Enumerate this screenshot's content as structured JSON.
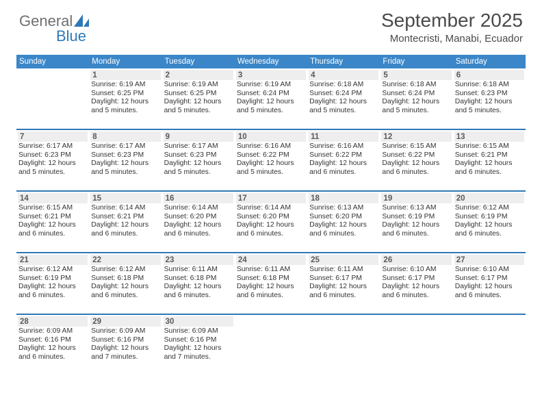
{
  "brand": {
    "part1": "General",
    "part2": "Blue"
  },
  "title": "September 2025",
  "location": "Montecristi, Manabi, Ecuador",
  "colors": {
    "header_bg": "#3a86c8",
    "week_border": "#2f78b7",
    "daynum_bg": "#eeeeee",
    "text": "#333333",
    "title_color": "#4a4a4a",
    "logo_gray": "#6f6f6f"
  },
  "weekdays": [
    "Sunday",
    "Monday",
    "Tuesday",
    "Wednesday",
    "Thursday",
    "Friday",
    "Saturday"
  ],
  "weeks": [
    [
      {
        "num": "",
        "sunrise": "",
        "sunset": "",
        "daylight": ""
      },
      {
        "num": "1",
        "sunrise": "6:19 AM",
        "sunset": "6:25 PM",
        "daylight": "12 hours and 5 minutes."
      },
      {
        "num": "2",
        "sunrise": "6:19 AM",
        "sunset": "6:25 PM",
        "daylight": "12 hours and 5 minutes."
      },
      {
        "num": "3",
        "sunrise": "6:19 AM",
        "sunset": "6:24 PM",
        "daylight": "12 hours and 5 minutes."
      },
      {
        "num": "4",
        "sunrise": "6:18 AM",
        "sunset": "6:24 PM",
        "daylight": "12 hours and 5 minutes."
      },
      {
        "num": "5",
        "sunrise": "6:18 AM",
        "sunset": "6:24 PM",
        "daylight": "12 hours and 5 minutes."
      },
      {
        "num": "6",
        "sunrise": "6:18 AM",
        "sunset": "6:23 PM",
        "daylight": "12 hours and 5 minutes."
      }
    ],
    [
      {
        "num": "7",
        "sunrise": "6:17 AM",
        "sunset": "6:23 PM",
        "daylight": "12 hours and 5 minutes."
      },
      {
        "num": "8",
        "sunrise": "6:17 AM",
        "sunset": "6:23 PM",
        "daylight": "12 hours and 5 minutes."
      },
      {
        "num": "9",
        "sunrise": "6:17 AM",
        "sunset": "6:23 PM",
        "daylight": "12 hours and 5 minutes."
      },
      {
        "num": "10",
        "sunrise": "6:16 AM",
        "sunset": "6:22 PM",
        "daylight": "12 hours and 5 minutes."
      },
      {
        "num": "11",
        "sunrise": "6:16 AM",
        "sunset": "6:22 PM",
        "daylight": "12 hours and 6 minutes."
      },
      {
        "num": "12",
        "sunrise": "6:15 AM",
        "sunset": "6:22 PM",
        "daylight": "12 hours and 6 minutes."
      },
      {
        "num": "13",
        "sunrise": "6:15 AM",
        "sunset": "6:21 PM",
        "daylight": "12 hours and 6 minutes."
      }
    ],
    [
      {
        "num": "14",
        "sunrise": "6:15 AM",
        "sunset": "6:21 PM",
        "daylight": "12 hours and 6 minutes."
      },
      {
        "num": "15",
        "sunrise": "6:14 AM",
        "sunset": "6:21 PM",
        "daylight": "12 hours and 6 minutes."
      },
      {
        "num": "16",
        "sunrise": "6:14 AM",
        "sunset": "6:20 PM",
        "daylight": "12 hours and 6 minutes."
      },
      {
        "num": "17",
        "sunrise": "6:14 AM",
        "sunset": "6:20 PM",
        "daylight": "12 hours and 6 minutes."
      },
      {
        "num": "18",
        "sunrise": "6:13 AM",
        "sunset": "6:20 PM",
        "daylight": "12 hours and 6 minutes."
      },
      {
        "num": "19",
        "sunrise": "6:13 AM",
        "sunset": "6:19 PM",
        "daylight": "12 hours and 6 minutes."
      },
      {
        "num": "20",
        "sunrise": "6:12 AM",
        "sunset": "6:19 PM",
        "daylight": "12 hours and 6 minutes."
      }
    ],
    [
      {
        "num": "21",
        "sunrise": "6:12 AM",
        "sunset": "6:19 PM",
        "daylight": "12 hours and 6 minutes."
      },
      {
        "num": "22",
        "sunrise": "6:12 AM",
        "sunset": "6:18 PM",
        "daylight": "12 hours and 6 minutes."
      },
      {
        "num": "23",
        "sunrise": "6:11 AM",
        "sunset": "6:18 PM",
        "daylight": "12 hours and 6 minutes."
      },
      {
        "num": "24",
        "sunrise": "6:11 AM",
        "sunset": "6:18 PM",
        "daylight": "12 hours and 6 minutes."
      },
      {
        "num": "25",
        "sunrise": "6:11 AM",
        "sunset": "6:17 PM",
        "daylight": "12 hours and 6 minutes."
      },
      {
        "num": "26",
        "sunrise": "6:10 AM",
        "sunset": "6:17 PM",
        "daylight": "12 hours and 6 minutes."
      },
      {
        "num": "27",
        "sunrise": "6:10 AM",
        "sunset": "6:17 PM",
        "daylight": "12 hours and 6 minutes."
      }
    ],
    [
      {
        "num": "28",
        "sunrise": "6:09 AM",
        "sunset": "6:16 PM",
        "daylight": "12 hours and 6 minutes."
      },
      {
        "num": "29",
        "sunrise": "6:09 AM",
        "sunset": "6:16 PM",
        "daylight": "12 hours and 7 minutes."
      },
      {
        "num": "30",
        "sunrise": "6:09 AM",
        "sunset": "6:16 PM",
        "daylight": "12 hours and 7 minutes."
      },
      {
        "num": "",
        "sunrise": "",
        "sunset": "",
        "daylight": ""
      },
      {
        "num": "",
        "sunrise": "",
        "sunset": "",
        "daylight": ""
      },
      {
        "num": "",
        "sunrise": "",
        "sunset": "",
        "daylight": ""
      },
      {
        "num": "",
        "sunrise": "",
        "sunset": "",
        "daylight": ""
      }
    ]
  ],
  "labels": {
    "sunrise": "Sunrise: ",
    "sunset": "Sunset: ",
    "daylight": "Daylight: "
  }
}
